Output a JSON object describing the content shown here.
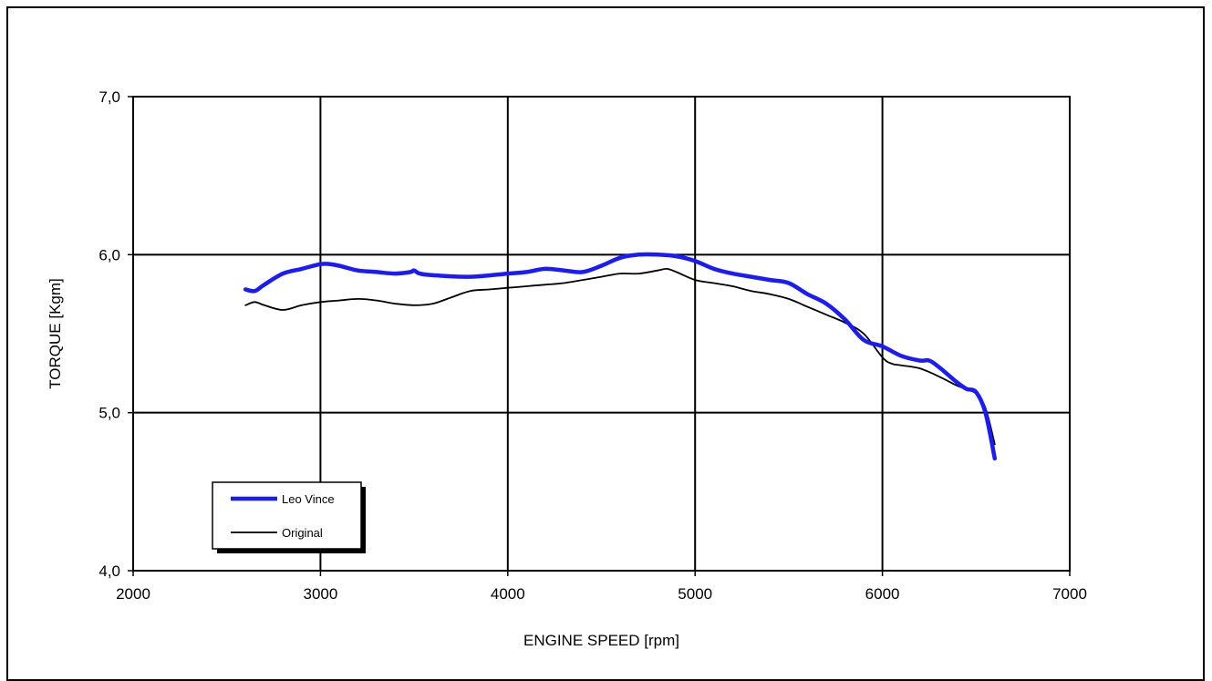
{
  "chart_data": {
    "type": "line",
    "title": "",
    "xlabel": "ENGINE SPEED [rpm]",
    "ylabel": "TORQUE [Kgm]",
    "xlim": [
      2000,
      7000
    ],
    "ylim": [
      4.0,
      7.0
    ],
    "x_ticks": [
      2000,
      3000,
      4000,
      5000,
      6000,
      7000
    ],
    "x_tick_labels": [
      "2000",
      "3000",
      "4000",
      "5000",
      "6000",
      "7000"
    ],
    "y_ticks": [
      4.0,
      5.0,
      6.0,
      7.0
    ],
    "y_tick_labels": [
      "4,0",
      "5,0",
      "6,0",
      "7,0"
    ],
    "grid": true,
    "legend": "bottom-left",
    "series": [
      {
        "name": "Leo Vince",
        "color": "#1a1aff",
        "x": [
          2600,
          2650,
          2700,
          2800,
          2900,
          3000,
          3050,
          3100,
          3200,
          3300,
          3400,
          3480,
          3500,
          3530,
          3600,
          3800,
          4000,
          4100,
          4200,
          4300,
          4400,
          4500,
          4600,
          4700,
          4800,
          4900,
          5000,
          5100,
          5200,
          5300,
          5400,
          5500,
          5600,
          5700,
          5800,
          5900,
          6000,
          6100,
          6200,
          6250,
          6300,
          6400,
          6450,
          6500,
          6550,
          6600
        ],
        "values": [
          5.78,
          5.77,
          5.81,
          5.88,
          5.91,
          5.94,
          5.94,
          5.93,
          5.9,
          5.89,
          5.88,
          5.89,
          5.9,
          5.88,
          5.87,
          5.86,
          5.88,
          5.89,
          5.91,
          5.9,
          5.89,
          5.93,
          5.98,
          6.0,
          6.0,
          5.99,
          5.96,
          5.91,
          5.88,
          5.86,
          5.84,
          5.82,
          5.75,
          5.69,
          5.59,
          5.46,
          5.42,
          5.36,
          5.33,
          5.33,
          5.29,
          5.19,
          5.15,
          5.13,
          5.0,
          4.71
        ]
      },
      {
        "name": "Original",
        "color": "#000000",
        "x": [
          2600,
          2650,
          2700,
          2800,
          2900,
          3000,
          3100,
          3200,
          3300,
          3400,
          3500,
          3600,
          3700,
          3800,
          3900,
          4000,
          4100,
          4200,
          4300,
          4400,
          4500,
          4600,
          4700,
          4800,
          4850,
          4900,
          5000,
          5100,
          5200,
          5300,
          5400,
          5500,
          5600,
          5700,
          5800,
          5900,
          6000,
          6050,
          6100,
          6200,
          6300,
          6400,
          6450,
          6500,
          6550,
          6600
        ],
        "values": [
          5.68,
          5.7,
          5.68,
          5.65,
          5.68,
          5.7,
          5.71,
          5.72,
          5.71,
          5.69,
          5.68,
          5.69,
          5.73,
          5.77,
          5.78,
          5.79,
          5.8,
          5.81,
          5.82,
          5.84,
          5.86,
          5.88,
          5.88,
          5.9,
          5.91,
          5.89,
          5.84,
          5.82,
          5.8,
          5.77,
          5.75,
          5.72,
          5.67,
          5.62,
          5.57,
          5.5,
          5.35,
          5.31,
          5.3,
          5.28,
          5.23,
          5.17,
          5.15,
          5.12,
          5.03,
          4.8
        ]
      }
    ]
  }
}
